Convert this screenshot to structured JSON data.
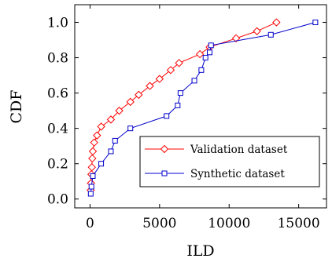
{
  "chart_data": {
    "type": "line",
    "xlabel": "ILD",
    "ylabel": "CDF",
    "xlim": [
      -1100,
      17000
    ],
    "ylim": [
      -0.05,
      1.1
    ],
    "xticks": [
      0,
      5000,
      10000,
      15000
    ],
    "xtick_labels": [
      "0",
      "5000",
      "10000",
      "15000"
    ],
    "yticks": [
      0,
      0.2,
      0.4,
      0.6,
      0.8,
      1.0
    ],
    "ytick_labels": [
      "0.0",
      "0.2",
      "0.4",
      "0.6",
      "0.8",
      "1.0"
    ],
    "grid": false,
    "legend_position": "lower-right",
    "series": [
      {
        "name": "Validation dataset",
        "color": "#ff0000",
        "marker": "diamond",
        "x": [
          50,
          70,
          100,
          130,
          160,
          200,
          300,
          500,
          800,
          1500,
          2100,
          2900,
          3500,
          4300,
          5000,
          5800,
          6400,
          7900,
          8600,
          10500,
          12000,
          13400
        ],
        "y": [
          0.05,
          0.09,
          0.14,
          0.18,
          0.23,
          0.27,
          0.32,
          0.36,
          0.41,
          0.45,
          0.5,
          0.55,
          0.59,
          0.64,
          0.68,
          0.73,
          0.77,
          0.82,
          0.86,
          0.91,
          0.95,
          1.0
        ]
      },
      {
        "name": "Synthetic dataset",
        "color": "#0000cc",
        "marker": "square",
        "x": [
          50,
          100,
          200,
          800,
          1500,
          1800,
          2900,
          5500,
          6300,
          6500,
          7500,
          8000,
          8300,
          8600,
          8700,
          13000,
          16200
        ],
        "y": [
          0.03,
          0.07,
          0.13,
          0.2,
          0.27,
          0.33,
          0.4,
          0.47,
          0.53,
          0.6,
          0.67,
          0.73,
          0.8,
          0.83,
          0.87,
          0.93,
          1.0
        ]
      }
    ]
  }
}
